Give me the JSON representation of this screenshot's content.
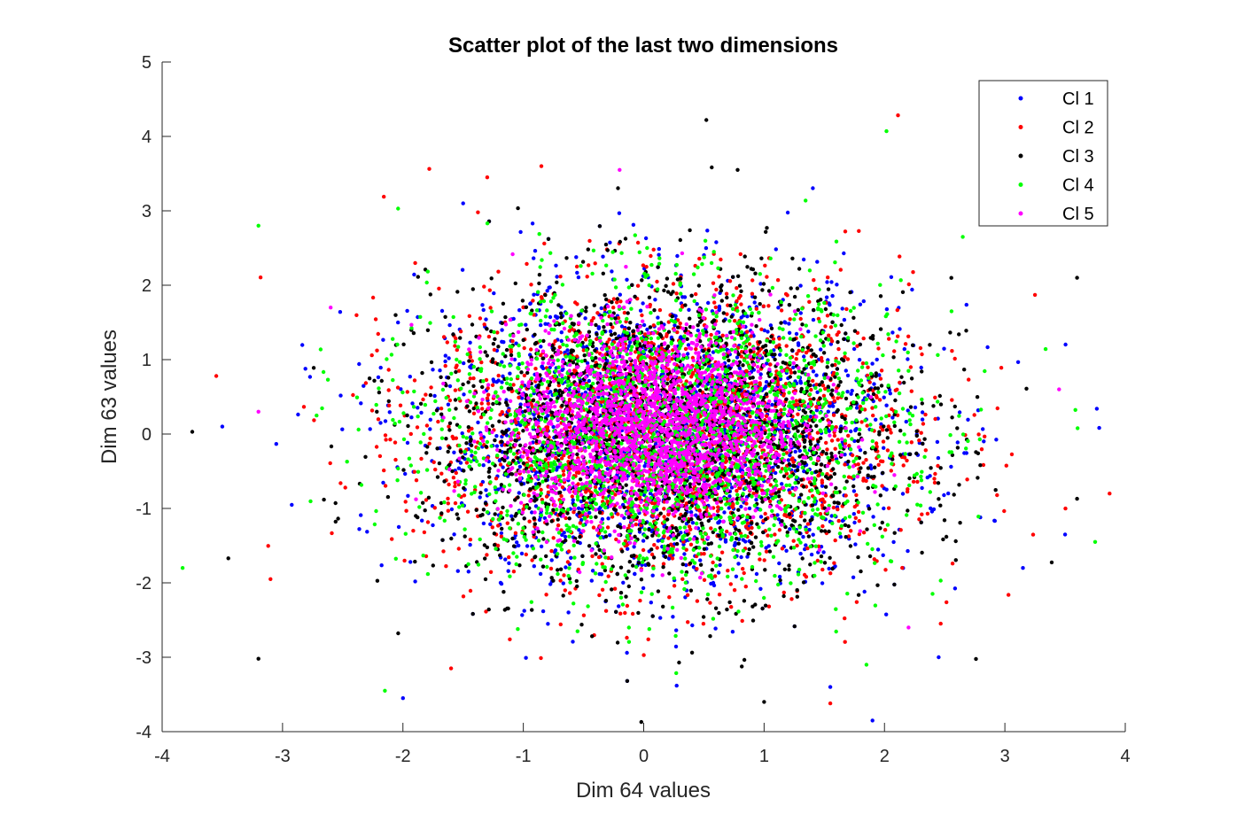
{
  "chart_data": {
    "type": "scatter",
    "title": "Scatter plot of the last two dimensions",
    "xlabel": "Dim 64 values",
    "ylabel": "Dim 63 values",
    "xlim": [
      -4,
      4
    ],
    "ylim": [
      -4,
      5
    ],
    "xticks": [
      -4,
      -3,
      -2,
      -1,
      0,
      1,
      2,
      3,
      4
    ],
    "yticks": [
      -4,
      -3,
      -2,
      -1,
      0,
      1,
      2,
      3,
      4,
      5
    ],
    "grid": false,
    "legend_position": "top-right",
    "points_per_series_approx": 2000,
    "series": [
      {
        "name": "Cl 1",
        "color": "#0000ff",
        "center": [
          0.2,
          0.0
        ],
        "spread": [
          1.0,
          1.0
        ],
        "outliers": [
          [
            -3.5,
            0.1
          ],
          [
            -2.0,
            -3.55
          ],
          [
            1.9,
            -3.85
          ],
          [
            3.5,
            -1.35
          ],
          [
            3.15,
            -1.8
          ],
          [
            1.55,
            -3.4
          ],
          [
            -1.5,
            3.1
          ],
          [
            2.45,
            -3.0
          ]
        ]
      },
      {
        "name": "Cl 2",
        "color": "#ff0000",
        "center": [
          0.2,
          0.0
        ],
        "spread": [
          1.0,
          1.0
        ],
        "outliers": [
          [
            -3.55,
            0.78
          ],
          [
            3.87,
            -0.8
          ],
          [
            1.55,
            -3.62
          ],
          [
            -0.85,
            3.6
          ],
          [
            -1.3,
            3.45
          ],
          [
            3.25,
            1.87
          ],
          [
            -3.1,
            -1.95
          ],
          [
            -1.6,
            -3.15
          ]
        ]
      },
      {
        "name": "Cl 3",
        "color": "#000000",
        "center": [
          0.2,
          0.0
        ],
        "spread": [
          1.0,
          1.0
        ],
        "outliers": [
          [
            0.52,
            4.22
          ],
          [
            -3.75,
            0.03
          ],
          [
            -3.45,
            -1.67
          ],
          [
            -3.2,
            -3.02
          ],
          [
            3.6,
            2.1
          ],
          [
            1.0,
            -3.6
          ],
          [
            -0.02,
            -3.87
          ],
          [
            0.78,
            3.55
          ],
          [
            3.6,
            -0.87
          ]
        ]
      },
      {
        "name": "Cl 4",
        "color": "#00ff00",
        "center": [
          0.2,
          0.0
        ],
        "spread": [
          0.95,
          0.95
        ],
        "outliers": [
          [
            -3.83,
            -1.8
          ],
          [
            -3.2,
            2.8
          ],
          [
            3.75,
            -1.45
          ],
          [
            -2.15,
            -3.45
          ],
          [
            1.85,
            -3.1
          ],
          [
            2.65,
            2.65
          ]
        ]
      },
      {
        "name": "Cl 5",
        "color": "#ff00ff",
        "center": [
          0.1,
          0.1
        ],
        "spread": [
          0.6,
          0.65
        ],
        "outliers": [
          [
            -0.2,
            3.55
          ],
          [
            3.45,
            0.6
          ],
          [
            -3.2,
            0.3
          ],
          [
            2.2,
            -2.6
          ],
          [
            -2.6,
            1.7
          ]
        ]
      }
    ]
  }
}
